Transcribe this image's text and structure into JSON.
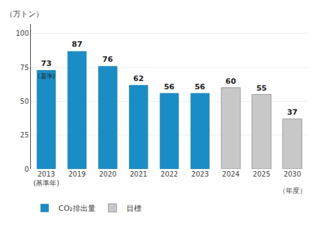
{
  "chart_data": {
    "type": "bar",
    "categories": [
      "2013\n(基準年)",
      "2019",
      "2020",
      "2021",
      "2022",
      "2023",
      "2024",
      "2025",
      "2030"
    ],
    "series": [
      {
        "name": "CO₂排出量",
        "color": "#1B8DC6",
        "values": [
          73,
          87,
          76,
          62,
          56,
          56,
          null,
          null,
          null
        ]
      },
      {
        "name": "目標",
        "color": "#C8C8C8",
        "values": [
          null,
          null,
          null,
          null,
          null,
          null,
          60,
          55,
          37
        ]
      }
    ],
    "ylabel": "（万トン）",
    "xlabel": "（年度）",
    "annotations": [
      {
        "x": "2013\n(基準年)",
        "text": "(基準)"
      }
    ],
    "ylim": [
      0,
      107
    ],
    "yticks": [
      0,
      25,
      50,
      75,
      100
    ],
    "grid": true,
    "legend": "bottom",
    "data_labels": true
  }
}
